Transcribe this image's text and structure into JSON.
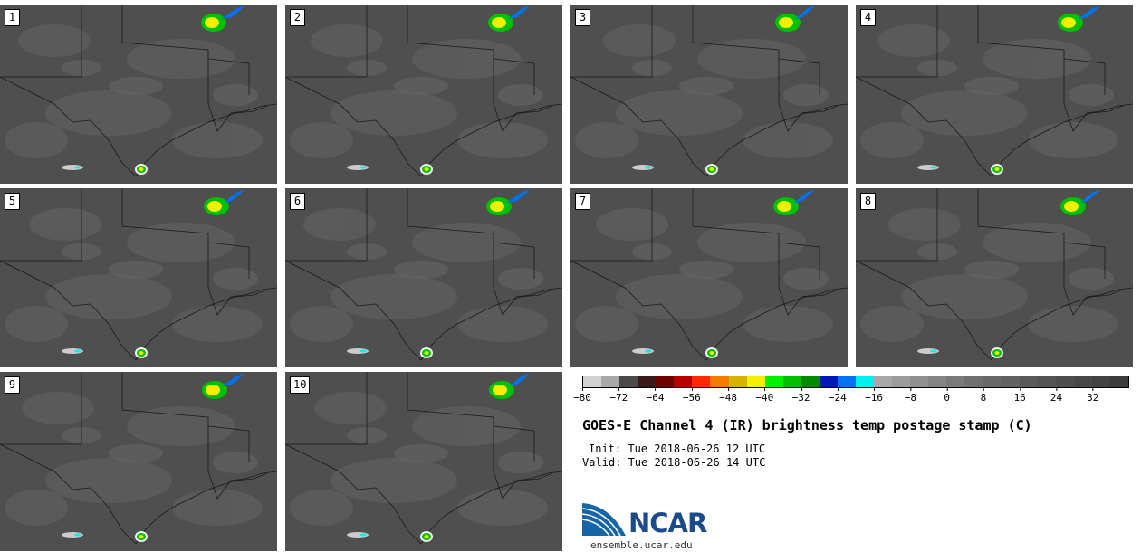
{
  "panels": [
    {
      "label": "1"
    },
    {
      "label": "2"
    },
    {
      "label": "3"
    },
    {
      "label": "4"
    },
    {
      "label": "5"
    },
    {
      "label": "6"
    },
    {
      "label": "7"
    },
    {
      "label": "8"
    },
    {
      "label": "9"
    },
    {
      "label": "10"
    }
  ],
  "colorbar": {
    "colors": [
      "#d3d3d3",
      "#a9a9a9",
      "#4a4a4a",
      "#3b1a1a",
      "#6e0000",
      "#b40000",
      "#ff2a00",
      "#f57a00",
      "#d4b400",
      "#f0f000",
      "#00f000",
      "#00c000",
      "#008a00",
      "#0018b4",
      "#0073f0",
      "#00f0f0",
      "#a8a8a8",
      "#9c9c9c",
      "#909090",
      "#858585",
      "#7a7a7a",
      "#707070",
      "#686868",
      "#616161",
      "#5a5a5a",
      "#545454",
      "#4e4e4e",
      "#484848",
      "#424242",
      "#3c3c3c"
    ],
    "ticks": [
      "−80",
      "−72",
      "−64",
      "−56",
      "−48",
      "−40",
      "−32",
      "−24",
      "−16",
      "−8",
      "0",
      "8",
      "16",
      "24",
      "32"
    ]
  },
  "title": "GOES-E Channel 4 (IR) brightness temp postage stamp (C)",
  "init": "Init: Tue 2018-06-26 12 UTC",
  "valid": "Valid: Tue 2018-06-26 14 UTC",
  "logo_text": "NCAR",
  "site": "ensemble.ucar.edu"
}
